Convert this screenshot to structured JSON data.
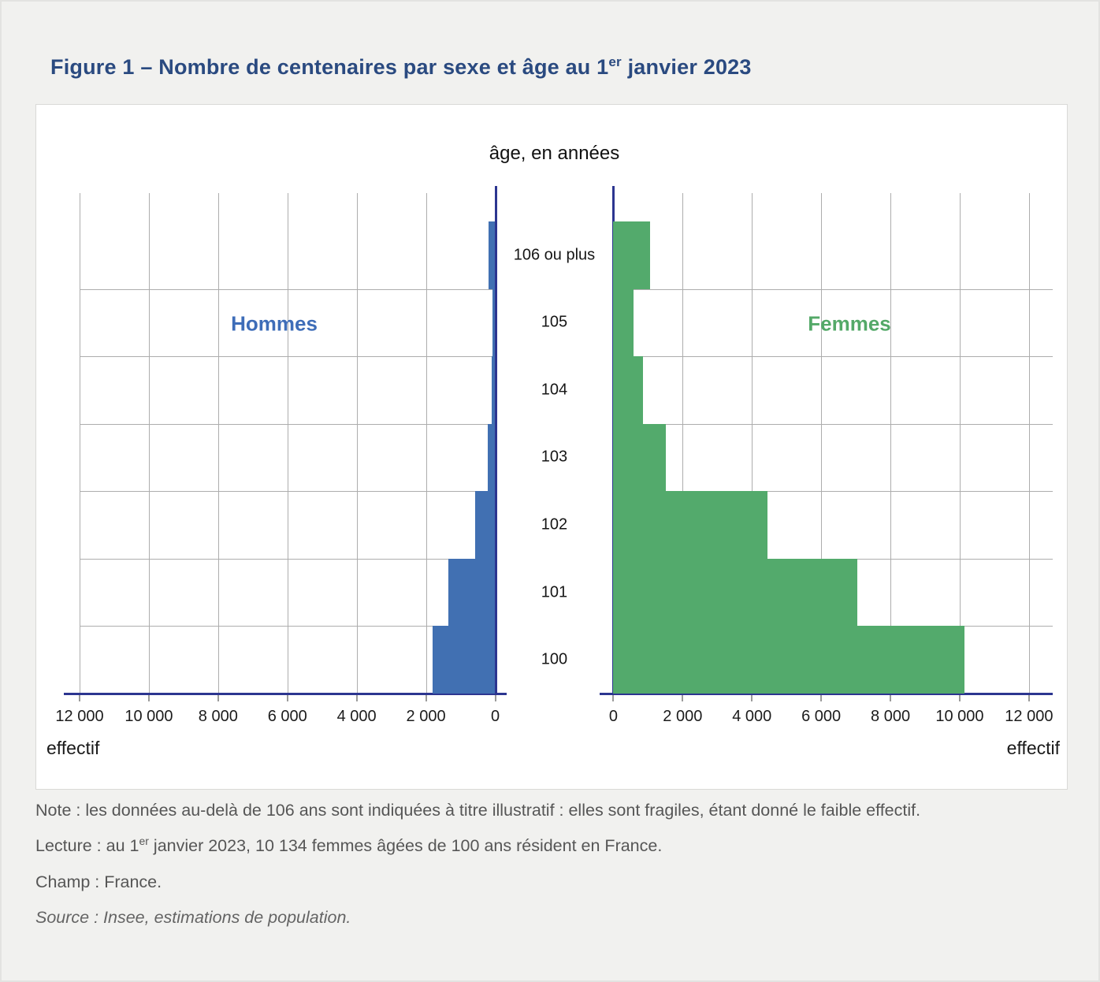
{
  "figure": {
    "title_prefix": "Figure 1 – Nombre de centenaires par sexe et âge au 1",
    "title_sup": "er",
    "title_suffix": " janvier 2023"
  },
  "chart_data": {
    "type": "bar",
    "subtype": "population-pyramid",
    "age_axis_title": "âge, en années",
    "x_axis_label": "effectif",
    "categories": [
      "106 ou plus",
      "105",
      "104",
      "103",
      "102",
      "101",
      "100"
    ],
    "series": [
      {
        "name": "Hommes",
        "side": "left",
        "color": "#4170b2",
        "values": [
          200,
          80,
          100,
          220,
          590,
          1360,
          1810
        ]
      },
      {
        "name": "Femmes",
        "side": "right",
        "color": "#53aa6c",
        "values": [
          1050,
          580,
          860,
          1510,
          4440,
          7040,
          10134
        ]
      }
    ],
    "xlim": [
      0,
      12000
    ],
    "tick_step": 2000,
    "tick_labels_left": [
      "12 000",
      "10 000",
      "8 000",
      "6 000",
      "4 000",
      "2 000",
      "0"
    ],
    "tick_labels_right": [
      "0",
      "2 000",
      "4 000",
      "6 000",
      "8 000",
      "10 000",
      "12 000"
    ],
    "grid": true,
    "legend_position": "inside-plot"
  },
  "notes": {
    "note": "Note : les données au-delà de 106 ans sont indiquées à titre illustratif : elles sont fragiles, étant donné le faible effectif.",
    "lecture_prefix": "Lecture : au 1",
    "lecture_sup": "er",
    "lecture_suffix": " janvier 2023, 10 134 femmes âgées de 100 ans résident en France.",
    "champ": "Champ : France.",
    "source": "Source : Insee, estimations de population."
  },
  "colors": {
    "title": "#2a4a80",
    "male_bar": "#4170b2",
    "female_bar": "#53aa6c",
    "axis": "#2c3590",
    "gridline": "#adadad",
    "panel_background": "#ffffff",
    "page_background": "#f1f1ef"
  }
}
